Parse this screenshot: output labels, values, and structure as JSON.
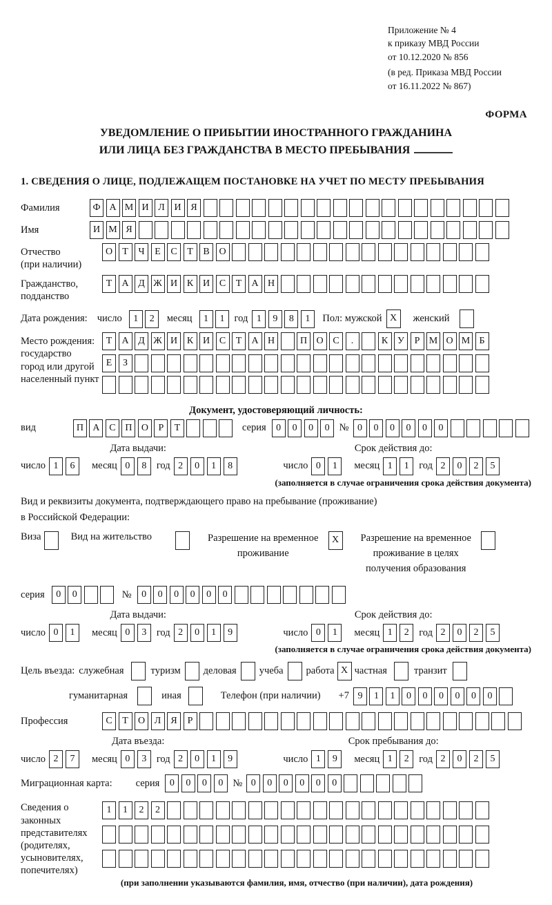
{
  "header": {
    "appendix_lines": [
      "Приложение № 4",
      "к приказу МВД России",
      "от 10.12.2020 № 856"
    ],
    "revision_lines": [
      "(в ред. Приказа МВД России",
      "от 16.11.2022 № 867)"
    ],
    "form_label": "ФОРМА"
  },
  "title": {
    "line1": "УВЕДОМЛЕНИЕ О ПРИБЫТИИ ИНОСТРАННОГО ГРАЖДАНИНА",
    "line2": "ИЛИ ЛИЦА БЕЗ ГРАЖДАНСТВА В МЕСТО ПРЕБЫВАНИЯ"
  },
  "section1_heading": "1. СВЕДЕНИЯ О ЛИЦЕ, ПОДЛЕЖАЩЕМ ПОСТАНОВКЕ НА УЧЕТ ПО МЕСТУ ПРЕБЫВАНИЯ",
  "labels": {
    "day": "число",
    "month": "месяц",
    "year": "год",
    "series": "серия",
    "number": "№",
    "issue_date": "Дата выдачи:",
    "valid_until": "Срок действия до:",
    "restriction_note": "(заполняется в случае ограничения срока действия документа)"
  },
  "person": {
    "surname": {
      "label": "Фамилия",
      "cells": [
        "Ф",
        "А",
        "М",
        "И",
        "Л",
        "И",
        "Я",
        "",
        "",
        "",
        "",
        "",
        "",
        "",
        "",
        "",
        "",
        "",
        "",
        "",
        "",
        "",
        "",
        "",
        "",
        ""
      ]
    },
    "given_name": {
      "label": "Имя",
      "cells": [
        "И",
        "М",
        "Я",
        "",
        "",
        "",
        "",
        "",
        "",
        "",
        "",
        "",
        "",
        "",
        "",
        "",
        "",
        "",
        "",
        "",
        "",
        "",
        "",
        "",
        "",
        ""
      ]
    },
    "patronymic": {
      "label_line1": "Отчество",
      "label_line2": "(при наличии)",
      "cells": [
        "О",
        "Т",
        "Ч",
        "Е",
        "С",
        "Т",
        "В",
        "О",
        "",
        "",
        "",
        "",
        "",
        "",
        "",
        "",
        "",
        "",
        "",
        "",
        "",
        "",
        "",
        ""
      ]
    },
    "citizenship": {
      "label_line1": "Гражданство,",
      "label_line2": "подданство",
      "cells": [
        "Т",
        "А",
        "Д",
        "Ж",
        "И",
        "К",
        "И",
        "С",
        "Т",
        "А",
        "Н",
        "",
        "",
        "",
        "",
        "",
        "",
        "",
        "",
        "",
        "",
        "",
        "",
        ""
      ]
    },
    "birth_date": {
      "label": "Дата рождения:",
      "day": [
        "1",
        "2"
      ],
      "month": [
        "1",
        "1"
      ],
      "year": [
        "1",
        "9",
        "8",
        "1"
      ]
    },
    "sex": {
      "male_label": "Пол: мужской",
      "male": "X",
      "female_label": "женский",
      "female": ""
    },
    "birth_place": {
      "label_lines": [
        "Место рождения:",
        "государство",
        "город или другой",
        "населенный пункт"
      ],
      "rows": [
        [
          "Т",
          "А",
          "Д",
          "Ж",
          "И",
          "К",
          "И",
          "С",
          "Т",
          "А",
          "Н",
          "",
          "П",
          "О",
          "С",
          ".",
          "",
          "К",
          "У",
          "Р",
          "М",
          "О",
          "М",
          "Б"
        ],
        [
          "Е",
          "З",
          "",
          "",
          "",
          "",
          "",
          "",
          "",
          "",
          "",
          "",
          "",
          "",
          "",
          "",
          "",
          "",
          "",
          "",
          "",
          "",
          "",
          ""
        ],
        [
          "",
          "",
          "",
          "",
          "",
          "",
          "",
          "",
          "",
          "",
          "",
          "",
          "",
          "",
          "",
          "",
          "",
          "",
          "",
          "",
          "",
          "",
          "",
          ""
        ]
      ]
    }
  },
  "identity_doc": {
    "heading": "Документ, удостоверяющий личность:",
    "type_label": "вид",
    "type_cells": [
      "П",
      "А",
      "С",
      "П",
      "О",
      "Р",
      "Т",
      "",
      "",
      ""
    ],
    "series": [
      "0",
      "0",
      "0",
      "0"
    ],
    "number": [
      "0",
      "0",
      "0",
      "0",
      "0",
      "0",
      "",
      "",
      "",
      "",
      ""
    ],
    "issue": {
      "day": [
        "1",
        "6"
      ],
      "month": [
        "0",
        "8"
      ],
      "year": [
        "2",
        "0",
        "1",
        "8"
      ]
    },
    "valid": {
      "day": [
        "0",
        "1"
      ],
      "month": [
        "1",
        "1"
      ],
      "year": [
        "2",
        "0",
        "2",
        "5"
      ]
    }
  },
  "residence_doc": {
    "intro_line1": "Вид и реквизиты документа, подтверждающего право на пребывание (проживание)",
    "intro_line2": "в Российской Федерации:",
    "visa": {
      "label": "Виза",
      "checked": ""
    },
    "residence_permit": {
      "label": "Вид на жительство",
      "checked": ""
    },
    "temp_residence": {
      "label_line1": "Разрешение на временное",
      "label_line2": "проживание",
      "checked": "X"
    },
    "temp_residence_edu": {
      "label_line1": "Разрешение на временное",
      "label_line2": "проживание в целях",
      "label_line3": "получения образования",
      "checked": ""
    },
    "series": [
      "0",
      "0",
      "",
      ""
    ],
    "number": [
      "0",
      "0",
      "0",
      "0",
      "0",
      "0",
      "",
      "",
      "",
      "",
      "",
      "",
      ""
    ],
    "issue": {
      "day": [
        "0",
        "1"
      ],
      "month": [
        "0",
        "3"
      ],
      "year": [
        "2",
        "0",
        "1",
        "9"
      ]
    },
    "valid": {
      "day": [
        "0",
        "1"
      ],
      "month": [
        "1",
        "2"
      ],
      "year": [
        "2",
        "0",
        "2",
        "5"
      ]
    }
  },
  "visit": {
    "purpose_prefix": "Цель въезда:",
    "options_line1": [
      {
        "label": "служебная",
        "checked": ""
      },
      {
        "label": "туризм",
        "checked": ""
      },
      {
        "label": "деловая",
        "checked": ""
      },
      {
        "label": "учеба",
        "checked": ""
      },
      {
        "label": "работа",
        "checked": "X"
      },
      {
        "label": "частная",
        "checked": ""
      },
      {
        "label": "транзит",
        "checked": ""
      }
    ],
    "options_line2": [
      {
        "label": "гуманитарная",
        "checked": ""
      },
      {
        "label": "иная",
        "checked": ""
      }
    ],
    "phone": {
      "label": "Телефон (при наличии)",
      "prefix": "+7",
      "digits": [
        "9",
        "1",
        "1",
        "0",
        "0",
        "0",
        "0",
        "0",
        "0",
        ""
      ]
    },
    "profession": {
      "label": "Профессия",
      "cells": [
        "С",
        "Т",
        "О",
        "Л",
        "Я",
        "Р",
        "",
        "",
        "",
        "",
        "",
        "",
        "",
        "",
        "",
        "",
        "",
        "",
        "",
        "",
        "",
        "",
        "",
        "",
        "",
        ""
      ]
    },
    "entry_date_heading": "Дата въезда:",
    "stay_until_heading": "Срок пребывания до:",
    "entry": {
      "day": [
        "2",
        "7"
      ],
      "month": [
        "0",
        "3"
      ],
      "year": [
        "2",
        "0",
        "1",
        "9"
      ]
    },
    "stay": {
      "day": [
        "1",
        "9"
      ],
      "month": [
        "1",
        "2"
      ],
      "year": [
        "2",
        "0",
        "2",
        "5"
      ]
    },
    "migration_card": {
      "label": "Миграционная карта:",
      "series": [
        "0",
        "0",
        "0",
        "0"
      ],
      "number": [
        "0",
        "0",
        "0",
        "0",
        "0",
        "0",
        "",
        "",
        "",
        "",
        ""
      ]
    }
  },
  "representatives": {
    "label_lines": [
      "Сведения о",
      "законных",
      "представителях",
      "(родителях,",
      "усыновителях,",
      "попечителях)"
    ],
    "rows": [
      [
        "1",
        "1",
        "2",
        "2",
        "",
        "",
        "",
        "",
        "",
        "",
        "",
        "",
        "",
        "",
        "",
        "",
        "",
        "",
        "",
        "",
        "",
        "",
        "",
        ""
      ],
      [
        "",
        "",
        "",
        "",
        "",
        "",
        "",
        "",
        "",
        "",
        "",
        "",
        "",
        "",
        "",
        "",
        "",
        "",
        "",
        "",
        "",
        "",
        "",
        ""
      ],
      [
        "",
        "",
        "",
        "",
        "",
        "",
        "",
        "",
        "",
        "",
        "",
        "",
        "",
        "",
        "",
        "",
        "",
        "",
        "",
        "",
        "",
        "",
        "",
        ""
      ]
    ],
    "note": "(при заполнении указываются фамилия, имя, отчество (при наличии), дата рождения)"
  }
}
